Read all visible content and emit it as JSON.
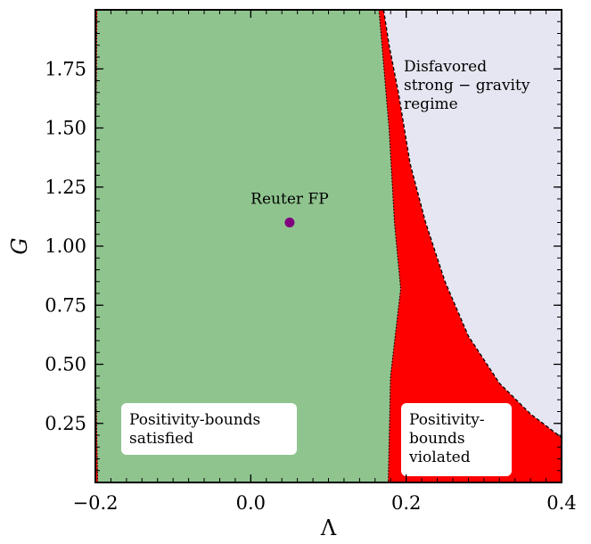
{
  "chart_data": {
    "type": "area",
    "title": "",
    "xlabel": "Λ",
    "ylabel": "G",
    "xlim": [
      -0.2,
      0.4
    ],
    "ylim": [
      0.0,
      2.0
    ],
    "xticks": [
      -0.2,
      0.0,
      0.2,
      0.4
    ],
    "xtick_labels": [
      "−0.2",
      "0.0",
      "0.2",
      "0.4"
    ],
    "yticks": [
      0.25,
      0.5,
      0.75,
      1.0,
      1.25,
      1.5,
      1.75
    ],
    "ytick_labels": [
      "0.25",
      "0.50",
      "0.75",
      "1.00",
      "1.25",
      "1.50",
      "1.75"
    ],
    "grid": false,
    "regions": [
      {
        "key": "satisfied",
        "color": "#8fc48f",
        "boundary": [
          [
            -0.197,
            0.0
          ],
          [
            -0.2,
            0.5
          ],
          [
            -0.2,
            1.2
          ],
          [
            -0.198,
            2.0
          ],
          [
            0.165,
            2.0
          ],
          [
            0.178,
            1.5
          ],
          [
            0.185,
            1.1
          ],
          [
            0.193,
            0.82
          ],
          [
            0.18,
            0.45
          ],
          [
            0.177,
            0.0
          ]
        ]
      },
      {
        "key": "violated",
        "color": "#ff0000",
        "boundary": [
          [
            0.165,
            2.0
          ],
          [
            0.178,
            1.5
          ],
          [
            0.185,
            1.1
          ],
          [
            0.193,
            0.82
          ],
          [
            0.18,
            0.45
          ],
          [
            0.177,
            0.0
          ],
          [
            0.4,
            0.0
          ],
          [
            0.4,
            0.19
          ],
          [
            0.36,
            0.29
          ],
          [
            0.32,
            0.42
          ],
          [
            0.28,
            0.62
          ],
          [
            0.25,
            0.85
          ],
          [
            0.225,
            1.1
          ],
          [
            0.205,
            1.35
          ],
          [
            0.19,
            1.65
          ],
          [
            0.178,
            1.85
          ],
          [
            0.171,
            2.0
          ]
        ]
      },
      {
        "key": "strong_gravity",
        "color": "#e6e6f2",
        "boundary": [
          [
            0.171,
            2.0
          ],
          [
            0.178,
            1.85
          ],
          [
            0.19,
            1.65
          ],
          [
            0.205,
            1.35
          ],
          [
            0.225,
            1.1
          ],
          [
            0.25,
            0.85
          ],
          [
            0.28,
            0.62
          ],
          [
            0.32,
            0.42
          ],
          [
            0.36,
            0.29
          ],
          [
            0.4,
            0.19
          ],
          [
            0.4,
            2.0
          ]
        ]
      },
      {
        "key": "left_violated",
        "color": "#ff0000",
        "boundary": [
          [
            -0.2,
            0.0
          ],
          [
            -0.197,
            0.0
          ],
          [
            -0.2,
            0.5
          ],
          [
            -0.2,
            1.2
          ],
          [
            -0.198,
            2.0
          ],
          [
            -0.2,
            2.0
          ]
        ]
      }
    ],
    "points": [
      {
        "label": "Reuter FP",
        "x": 0.05,
        "y": 1.1,
        "color": "#800080"
      }
    ],
    "annotations": {
      "strong_gravity": {
        "lines": [
          "Disfavored",
          "strong − gravity",
          "regime"
        ]
      },
      "satisfied": {
        "lines": [
          "Positivity-bounds",
          "satisfied"
        ]
      },
      "violated": {
        "lines": [
          "Positivity-",
          "bounds",
          "violated"
        ]
      }
    }
  }
}
